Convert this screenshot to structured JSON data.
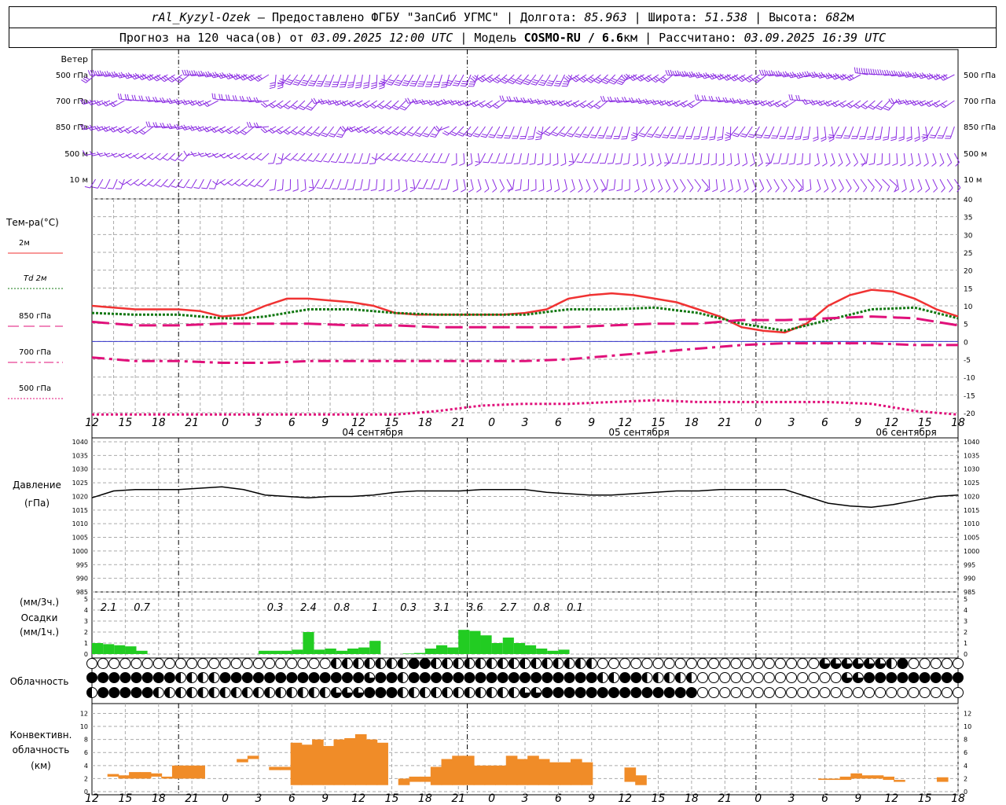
{
  "header": {
    "station": "rAl_Kyzyl-Ozek",
    "provider": "– Предоставлено ФГБУ \"ЗапСиб УГМС\"",
    "lon_label": "| Долгота:",
    "lon": "85.963",
    "lat_label": "| Широта:",
    "lat": "51.538",
    "alt_label": "| Высота:",
    "alt": "682",
    "alt_unit": "м",
    "forecast_label": "Прогноз на 120 часа(ов) от",
    "forecast_start": "03.09.2025 12:00 UTC",
    "model_label": "| Модель",
    "model": "COSMO-RU / 6.6",
    "model_unit": "км",
    "calc_label": "| Рассчитано:",
    "calc_time": "03.09.2025 16:39 UTC"
  },
  "wind_panel": {
    "title": "Ветер",
    "levels": [
      "500 гПа",
      "700 гПа",
      "850 гПа",
      "500 м",
      "10 м"
    ]
  },
  "temp_panel": {
    "title": "Тем-ра(°C)",
    "legend": [
      {
        "label": "2м",
        "color": "#f03232",
        "style": "solid"
      },
      {
        "label": "Td 2м",
        "color": "#117711",
        "style": "dotted"
      },
      {
        "label": "850 гПа",
        "color": "#e0107a",
        "style": "dashed"
      },
      {
        "label": "700 гПа",
        "color": "#e0107a",
        "style": "dashdot"
      },
      {
        "label": "500 гПа",
        "color": "#e0107a",
        "style": "dotted"
      }
    ],
    "yticks": [
      "40",
      "35",
      "30",
      "25",
      "20",
      "15",
      "10",
      "5",
      "0",
      "-5",
      "-10",
      "-15",
      "-20"
    ]
  },
  "time_axis": {
    "hour_labels": [
      "12",
      "15",
      "18",
      "21",
      "0",
      "3",
      "6",
      "9",
      "12",
      "15",
      "18",
      "21",
      "0",
      "3",
      "6",
      "9",
      "12",
      "15",
      "18",
      "21",
      "0",
      "3",
      "6",
      "9",
      "12",
      "15",
      "18"
    ],
    "dates": [
      "04 сентября",
      "05 сентября",
      "06 сентября"
    ]
  },
  "pressure_panel": {
    "title": "Давление",
    "unit": "(гПа)",
    "yticks": [
      "1040",
      "1035",
      "1030",
      "1025",
      "1020",
      "1015",
      "1010",
      "1005",
      "1000",
      "995",
      "990",
      "985"
    ]
  },
  "precip_panel": {
    "unit_3h": "(мм/3ч.)",
    "title": "Осадки",
    "unit_1h": "(мм/1ч.)",
    "yticks": [
      "5",
      "4",
      "3",
      "2",
      "1",
      "0"
    ],
    "totals": [
      {
        "hour": 1,
        "text": "2.1"
      },
      {
        "hour": 4,
        "text": "0.7"
      },
      {
        "hour": 16,
        "text": "0.3"
      },
      {
        "hour": 19,
        "text": "2.4"
      },
      {
        "hour": 22,
        "text": "0.8"
      },
      {
        "hour": 25,
        "text": "1"
      },
      {
        "hour": 28,
        "text": "0.3"
      },
      {
        "hour": 31,
        "text": "3.1"
      },
      {
        "hour": 34,
        "text": "3.6"
      },
      {
        "hour": 37,
        "text": "2.7"
      },
      {
        "hour": 40,
        "text": "0.8"
      },
      {
        "hour": 43,
        "text": "0.1"
      }
    ]
  },
  "cloud_panel": {
    "title": "Облачность"
  },
  "conv_panel": {
    "title1": "Конвективн.",
    "title2": "облачность",
    "unit": "(км)",
    "yticks": [
      "12",
      "10",
      "8",
      "6",
      "4",
      "2",
      "0"
    ]
  },
  "colors": {
    "temp2m": "#f03232",
    "dew": "#117711",
    "t850": "#e0107a",
    "wind": "#8a2be2",
    "precip": "#22cc22",
    "conv": "#f08c28",
    "zero_line": "#3333cc"
  },
  "chart_data": [
    {
      "type": "line",
      "title": "Тем-ра(°C)",
      "x_unit": "часы от 03.09.2025 12:00 UTC",
      "ylim": [
        -20,
        40
      ],
      "series": [
        {
          "name": "2м",
          "x": [
            0,
            3,
            6,
            9,
            12,
            15,
            18,
            21,
            24,
            27,
            30,
            33,
            36,
            39,
            42,
            45,
            48,
            51,
            54,
            57,
            60,
            63,
            66,
            69,
            72,
            75,
            78,
            81,
            84,
            87,
            90,
            93,
            96,
            99,
            102,
            105,
            108,
            111,
            114,
            117,
            120
          ],
          "values": [
            10,
            9.5,
            9,
            9,
            9,
            8.5,
            7,
            7.5,
            10,
            12,
            12,
            11.5,
            11,
            10,
            8,
            7.5,
            7.5,
            7.5,
            7.5,
            7.5,
            8,
            9,
            12,
            13,
            13.5,
            13,
            12,
            11,
            9,
            7,
            4,
            3,
            2.5,
            5,
            10,
            13,
            14.5,
            14,
            12,
            9,
            7
          ]
        },
        {
          "name": "Td 2м",
          "x": [
            0,
            6,
            12,
            18,
            21,
            24,
            30,
            36,
            42,
            48,
            54,
            60,
            66,
            72,
            78,
            84,
            90,
            96,
            102,
            108,
            114,
            120
          ],
          "values": [
            8,
            7.5,
            7.5,
            6.5,
            6.5,
            7,
            9,
            9,
            8,
            7.5,
            7.5,
            7.5,
            9,
            9,
            9.5,
            8,
            5,
            3,
            6,
            9,
            9.5,
            6.5
          ]
        },
        {
          "name": "850 гПа",
          "x": [
            0,
            6,
            12,
            18,
            24,
            30,
            36,
            42,
            48,
            54,
            60,
            66,
            72,
            78,
            84,
            90,
            96,
            102,
            108,
            114,
            120
          ],
          "values": [
            5.5,
            4.5,
            4.5,
            5,
            5,
            5,
            4.5,
            4.5,
            4,
            4,
            4,
            4,
            4.5,
            5,
            5,
            6,
            6,
            6.5,
            7,
            6.5,
            4.5
          ]
        },
        {
          "name": "700 гПа",
          "x": [
            0,
            6,
            12,
            18,
            24,
            30,
            36,
            42,
            48,
            54,
            60,
            66,
            72,
            78,
            84,
            90,
            96,
            102,
            108,
            114,
            120
          ],
          "values": [
            -4.5,
            -5.5,
            -5.5,
            -6,
            -6,
            -5.5,
            -5.5,
            -5.5,
            -5.5,
            -5.5,
            -5.5,
            -5,
            -4,
            -3,
            -2,
            -1,
            -0.5,
            -0.5,
            -0.5,
            -1,
            -1
          ]
        },
        {
          "name": "500 гПа",
          "x": [
            0,
            6,
            12,
            18,
            24,
            30,
            36,
            42,
            45,
            48,
            54,
            60,
            66,
            72,
            78,
            84,
            90,
            96,
            102,
            108,
            114,
            120
          ],
          "values": [
            -21,
            -21,
            -21,
            -21,
            -21,
            -21,
            -21,
            -21,
            -20,
            -19.5,
            -18,
            -17.5,
            -17.5,
            -17,
            -16.5,
            -17,
            -17,
            -17,
            -17,
            -17.5,
            -19.5,
            -21
          ]
        }
      ]
    },
    {
      "type": "line",
      "title": "Давление",
      "ylabel": "(гПа)",
      "ylim": [
        985,
        1040
      ],
      "series": [
        {
          "name": "Давление",
          "x": [
            0,
            3,
            6,
            9,
            12,
            15,
            18,
            21,
            24,
            27,
            30,
            33,
            36,
            39,
            42,
            45,
            48,
            51,
            54,
            57,
            60,
            63,
            66,
            69,
            72,
            75,
            78,
            81,
            84,
            87,
            90,
            93,
            96,
            99,
            102,
            105,
            108,
            111,
            114,
            117,
            120
          ],
          "values": [
            1019.5,
            1022,
            1022.5,
            1022.5,
            1022.5,
            1023,
            1023.5,
            1022.5,
            1020.5,
            1020,
            1019.5,
            1020,
            1020,
            1020.5,
            1021.5,
            1022,
            1022,
            1022,
            1022.5,
            1022.5,
            1022.5,
            1021.5,
            1021,
            1020.5,
            1020.5,
            1021,
            1021.5,
            1022,
            1022,
            1022.5,
            1022.5,
            1022.5,
            1022.5,
            1020,
            1017.5,
            1016.5,
            1016,
            1017,
            1018.5,
            1020,
            1020.5
          ]
        }
      ]
    },
    {
      "type": "bar",
      "title": "Осадки",
      "ylabel": "(мм/1ч.)",
      "ylim": [
        0,
        5
      ],
      "series": [
        {
          "name": "Осадки",
          "x": [
            0,
            1,
            2,
            3,
            4,
            15,
            16,
            17,
            18,
            19,
            20,
            21,
            22,
            23,
            24,
            25,
            26,
            27,
            28,
            29,
            30,
            31,
            32,
            33,
            34,
            35,
            36,
            37,
            38,
            39,
            40,
            41,
            42
          ],
          "values": [
            1,
            0.9,
            0.8,
            0.7,
            0.3,
            0.3,
            0.3,
            0.3,
            0.4,
            2,
            0.4,
            0.5,
            0.3,
            0.5,
            0.6,
            1.2,
            0,
            0,
            0.05,
            0.1,
            0.5,
            0.8,
            0.6,
            2.2,
            2.1,
            1.7,
            1,
            1.5,
            1,
            0.8,
            0.5,
            0.3,
            0.4
          ]
        }
      ]
    },
    {
      "type": "bar",
      "title": "Конвективн. облачность",
      "ylabel": "(км)",
      "ylim": [
        0,
        13
      ],
      "series": [
        {
          "name": "Конвективн. облачность",
          "x": [
            0,
            1,
            2,
            3,
            4,
            5,
            6,
            7,
            8,
            12,
            13,
            15,
            16,
            17,
            18,
            19,
            20,
            21,
            22,
            23,
            24,
            25,
            27,
            28,
            29,
            30,
            31,
            32,
            33,
            34,
            35,
            36,
            37,
            38,
            39,
            40,
            41,
            42,
            43,
            44,
            48,
            49,
            66,
            67,
            68,
            69,
            70,
            71,
            72,
            73,
            77
          ],
          "lo": [
            2.3,
            2,
            2,
            2,
            2.3,
            2,
            2,
            2,
            2,
            4.5,
            5,
            3.3,
            3.3,
            1,
            1,
            1,
            1,
            1,
            1,
            1,
            1,
            1,
            1,
            1.5,
            1.5,
            1,
            1,
            1,
            1,
            1,
            1,
            1,
            1,
            1,
            1,
            1,
            1,
            1,
            1,
            1,
            1.5,
            1,
            1.8,
            1.8,
            1.8,
            2,
            2,
            2,
            1.8,
            1.5,
            1.5
          ],
          "values": [
            2.7,
            2.5,
            3,
            3,
            2.8,
            2.3,
            4,
            4,
            4,
            5,
            5.5,
            3.8,
            3.8,
            7.5,
            7.2,
            8,
            7,
            8,
            8.2,
            8.8,
            8,
            7.5,
            2,
            2.3,
            2.3,
            3.8,
            5,
            5.5,
            5.5,
            4,
            4,
            4,
            5.5,
            5,
            5.5,
            5,
            4.5,
            4.5,
            5,
            4.5,
            3.7,
            2.5,
            2,
            2,
            2.3,
            2.8,
            2.5,
            2.5,
            2.3,
            1.8,
            2.2
          ]
        }
      ]
    }
  ]
}
